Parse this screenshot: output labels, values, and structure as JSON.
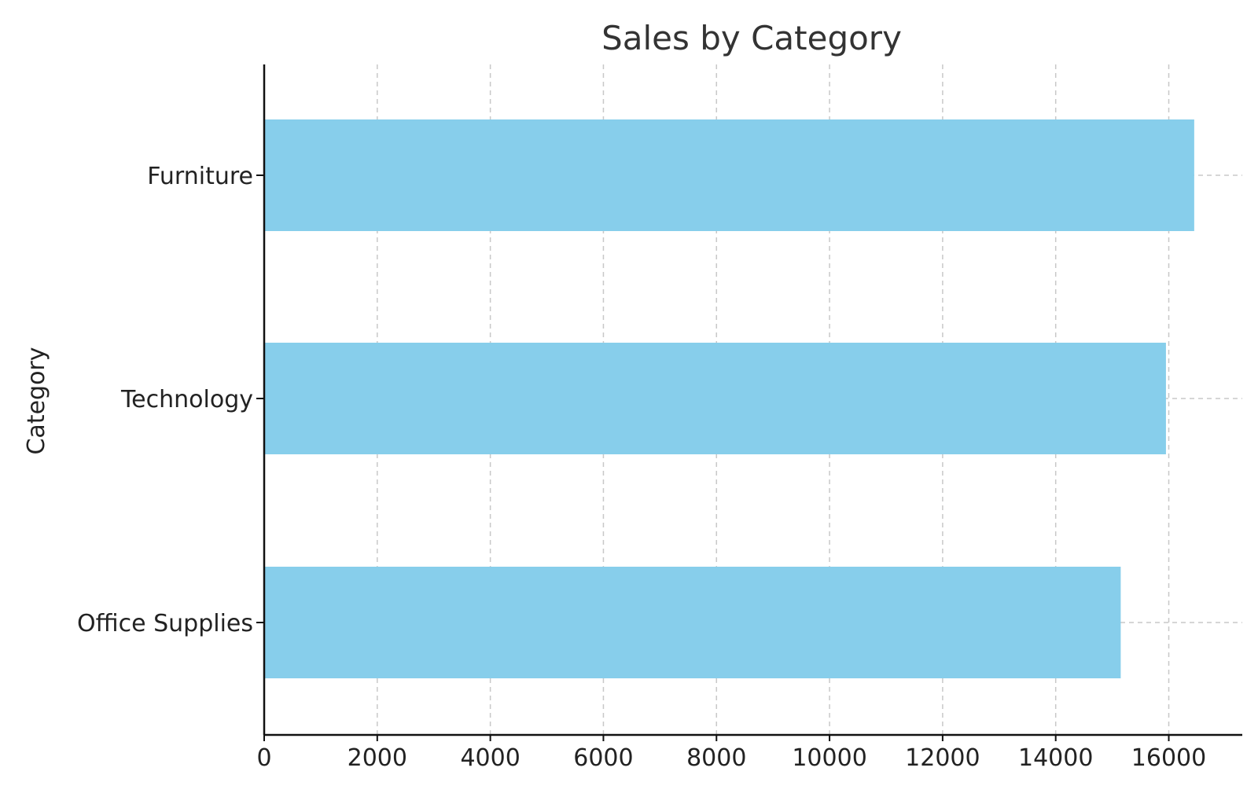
{
  "chart_data": {
    "type": "bar",
    "orientation": "horizontal",
    "title": "Sales by Category",
    "xlabel": "",
    "ylabel": "Category",
    "categories": [
      "Office Supplies",
      "Technology",
      "Furniture"
    ],
    "values": [
      15150,
      15950,
      16450
    ],
    "xlim": [
      0,
      17300
    ],
    "xticks": [
      0,
      2000,
      4000,
      6000,
      8000,
      10000,
      12000,
      14000,
      16000
    ],
    "grid": true,
    "bar_color": "#87CEEB"
  }
}
